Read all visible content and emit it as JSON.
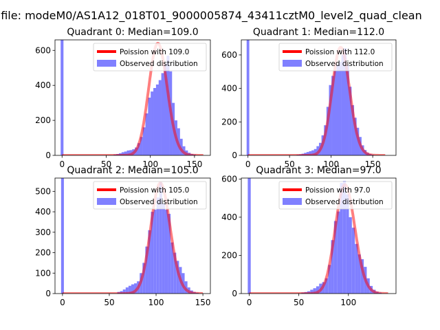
{
  "figure": {
    "suptitle": "n file: modeM0/AS1A12_018T01_9000005874_43411cztM0_level2_quad_clean"
  },
  "colors": {
    "hist": "#8080ff",
    "line": "#ff0000",
    "text": "#000000"
  },
  "chart_data": [
    {
      "type": "histogram",
      "title": "Quadrant 0: Median=109.0",
      "xlim": [
        -8,
        168
      ],
      "ylim": [
        0,
        660
      ],
      "xticks": [
        0,
        50,
        100,
        150
      ],
      "yticks": [
        0,
        200,
        400,
        600
      ],
      "legend_position": "upper right",
      "poisson": {
        "label": "Poission with 109.0",
        "mean": 109.0,
        "peak": 640,
        "x_range": [
          0,
          160
        ]
      },
      "observed": {
        "label": "Observed distribution",
        "bin_width": 3.2,
        "spike": {
          "x": 0,
          "value": 1000
        },
        "bins": [
          [
            60,
            5
          ],
          [
            63,
            8
          ],
          [
            66,
            12
          ],
          [
            69,
            18
          ],
          [
            72,
            22
          ],
          [
            75,
            28
          ],
          [
            78,
            30
          ],
          [
            81,
            35
          ],
          [
            84,
            45
          ],
          [
            87,
            70
          ],
          [
            90,
            105
          ],
          [
            93,
            160
          ],
          [
            96,
            240
          ],
          [
            99,
            330
          ],
          [
            102,
            365
          ],
          [
            105,
            385
          ],
          [
            108,
            405
          ],
          [
            111,
            430
          ],
          [
            114,
            470
          ],
          [
            117,
            520
          ],
          [
            120,
            570
          ],
          [
            123,
            480
          ],
          [
            126,
            300
          ],
          [
            129,
            200
          ],
          [
            132,
            155
          ],
          [
            135,
            95
          ],
          [
            138,
            52
          ],
          [
            141,
            28
          ],
          [
            144,
            15
          ],
          [
            147,
            8
          ],
          [
            150,
            5
          ]
        ]
      }
    },
    {
      "type": "histogram",
      "title": "Quadrant 1: Median=112.0",
      "xlim": [
        -8,
        178
      ],
      "ylim": [
        0,
        690
      ],
      "xticks": [
        0,
        50,
        100,
        150
      ],
      "yticks": [
        0,
        200,
        400,
        600
      ],
      "legend_position": "upper right",
      "poisson": {
        "label": "Poission with 112.0",
        "mean": 112.0,
        "peak": 645,
        "x_range": [
          0,
          165
        ]
      },
      "observed": {
        "label": "Observed distribution",
        "bin_width": 3.2,
        "spike": {
          "x": 0,
          "value": 1000
        },
        "bins": [
          [
            60,
            4
          ],
          [
            63,
            6
          ],
          [
            66,
            10
          ],
          [
            69,
            15
          ],
          [
            72,
            20
          ],
          [
            75,
            25
          ],
          [
            78,
            30
          ],
          [
            81,
            38
          ],
          [
            84,
            55
          ],
          [
            87,
            75
          ],
          [
            90,
            120
          ],
          [
            93,
            180
          ],
          [
            96,
            290
          ],
          [
            99,
            420
          ],
          [
            102,
            475
          ],
          [
            105,
            505
          ],
          [
            108,
            545
          ],
          [
            111,
            560
          ],
          [
            114,
            600
          ],
          [
            117,
            640
          ],
          [
            120,
            540
          ],
          [
            123,
            410
          ],
          [
            126,
            300
          ],
          [
            129,
            225
          ],
          [
            132,
            165
          ],
          [
            135,
            110
          ],
          [
            138,
            60
          ],
          [
            141,
            32
          ],
          [
            144,
            16
          ],
          [
            147,
            8
          ],
          [
            150,
            4
          ]
        ]
      }
    },
    {
      "type": "histogram",
      "title": "Quadrant 2: Median=105.0",
      "xlim": [
        -8,
        158
      ],
      "ylim": [
        0,
        565
      ],
      "xticks": [
        0,
        50,
        100,
        150
      ],
      "yticks": [
        0,
        100,
        200,
        300,
        400,
        500
      ],
      "legend_position": "upper right",
      "poisson": {
        "label": "Poission with 105.0",
        "mean": 105.0,
        "peak": 540,
        "x_range": [
          0,
          150
        ]
      },
      "observed": {
        "label": "Observed distribution",
        "bin_width": 3.0,
        "spike": {
          "x": 0,
          "value": 1000
        },
        "bins": [
          [
            60,
            8
          ],
          [
            63,
            12
          ],
          [
            66,
            20
          ],
          [
            69,
            30
          ],
          [
            72,
            38
          ],
          [
            75,
            45
          ],
          [
            78,
            50
          ],
          [
            81,
            60
          ],
          [
            84,
            100
          ],
          [
            87,
            150
          ],
          [
            90,
            230
          ],
          [
            93,
            310
          ],
          [
            96,
            400
          ],
          [
            99,
            410
          ],
          [
            102,
            470
          ],
          [
            105,
            545
          ],
          [
            108,
            440
          ],
          [
            111,
            410
          ],
          [
            114,
            390
          ],
          [
            117,
            250
          ],
          [
            120,
            200
          ],
          [
            123,
            160
          ],
          [
            126,
            130
          ],
          [
            129,
            100
          ],
          [
            132,
            60
          ],
          [
            135,
            30
          ],
          [
            138,
            15
          ],
          [
            141,
            8
          ],
          [
            144,
            4
          ]
        ]
      }
    },
    {
      "type": "histogram",
      "title": "Quadrant 3: Median=97.0",
      "xlim": [
        -8,
        148
      ],
      "ylim": [
        0,
        605
      ],
      "xticks": [
        0,
        50,
        100
      ],
      "yticks": [
        0,
        200,
        400,
        600
      ],
      "legend_position": "upper right",
      "poisson": {
        "label": "Poission with 97.0",
        "mean": 97.0,
        "peak": 570,
        "x_range": [
          0,
          140
        ]
      },
      "observed": {
        "label": "Observed distribution",
        "bin_width": 3.0,
        "spike": {
          "x": 0,
          "value": 1000
        },
        "bins": [
          [
            54,
            5
          ],
          [
            57,
            8
          ],
          [
            60,
            12
          ],
          [
            63,
            20
          ],
          [
            66,
            28
          ],
          [
            69,
            38
          ],
          [
            72,
            52
          ],
          [
            75,
            60
          ],
          [
            78,
            80
          ],
          [
            81,
            150
          ],
          [
            84,
            280
          ],
          [
            87,
            380
          ],
          [
            90,
            430
          ],
          [
            93,
            580
          ],
          [
            96,
            590
          ],
          [
            99,
            520
          ],
          [
            102,
            400
          ],
          [
            105,
            345
          ],
          [
            108,
            260
          ],
          [
            111,
            205
          ],
          [
            114,
            180
          ],
          [
            117,
            140
          ],
          [
            120,
            80
          ],
          [
            123,
            40
          ],
          [
            126,
            20
          ],
          [
            129,
            10
          ],
          [
            132,
            5
          ]
        ]
      }
    }
  ]
}
